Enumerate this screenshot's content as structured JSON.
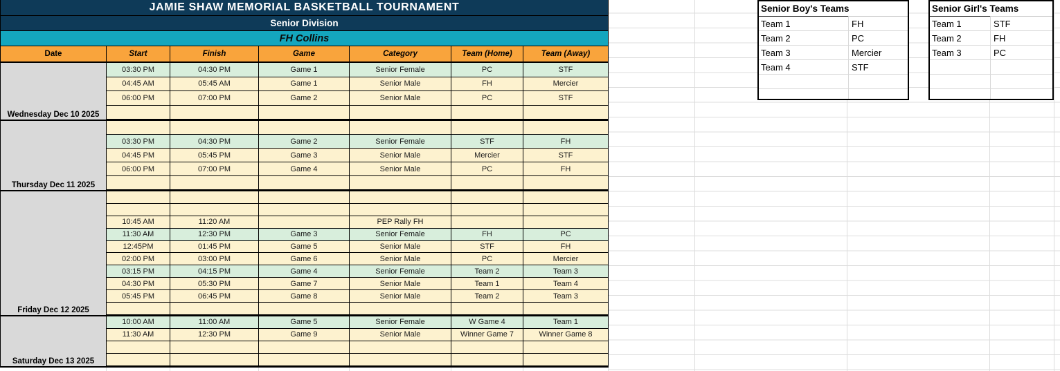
{
  "banner": {
    "title": "JAMIE SHAW MEMORIAL BASKETBALL TOURNAMENT",
    "division": "Senior Division",
    "venue": "FH Collins"
  },
  "schedule": {
    "columns": [
      "Date",
      "Start",
      "Finish",
      "Game",
      "Category",
      "Team (Home)",
      "Team (Away)"
    ],
    "groups": [
      {
        "date": "Wednesday Dec 10 2025",
        "rows": [
          {
            "start": "03:30 PM",
            "finish": "04:30 PM",
            "game": "Game 1",
            "category": "Senior Female",
            "home": "PC",
            "away": "STF",
            "tint": "green"
          },
          {
            "start": "04:45 AM",
            "finish": "05:45 AM",
            "game": "Game 1",
            "category": "Senior Male",
            "home": "FH",
            "away": "Mercier",
            "tint": "cream"
          },
          {
            "start": "06:00 PM",
            "finish": "07:00 PM",
            "game": "Game 2",
            "category": "Senior Male",
            "home": "PC",
            "away": "STF",
            "tint": "cream"
          },
          {
            "start": "",
            "finish": "",
            "game": "",
            "category": "",
            "home": "",
            "away": "",
            "tint": "cream"
          }
        ]
      },
      {
        "date": "Thursday Dec 11 2025",
        "rows": [
          {
            "start": "",
            "finish": "",
            "game": "",
            "category": "",
            "home": "",
            "away": "",
            "tint": "cream"
          },
          {
            "start": "03:30 PM",
            "finish": "04:30 PM",
            "game": "Game 2",
            "category": "Senior Female",
            "home": "STF",
            "away": "FH",
            "tint": "green"
          },
          {
            "start": "04:45 PM",
            "finish": "05:45 PM",
            "game": "Game 3",
            "category": "Senior Male",
            "home": "Mercier",
            "away": "STF",
            "tint": "cream"
          },
          {
            "start": "06:00 PM",
            "finish": "07:00 PM",
            "game": "Game 4",
            "category": "Senior Male",
            "home": "PC",
            "away": "FH",
            "tint": "cream"
          },
          {
            "start": "",
            "finish": "",
            "game": "",
            "category": "",
            "home": "",
            "away": "",
            "tint": "cream"
          }
        ]
      },
      {
        "date": "Friday Dec 12 2025",
        "rows": [
          {
            "start": "",
            "finish": "",
            "game": "",
            "category": "",
            "home": "",
            "away": "",
            "tint": "cream"
          },
          {
            "start": "",
            "finish": "",
            "game": "",
            "category": "",
            "home": "",
            "away": "",
            "tint": "cream"
          },
          {
            "start": "10:45 AM",
            "finish": "11:20 AM",
            "game": "",
            "category": "PEP Rally FH",
            "home": "",
            "away": "",
            "tint": "cream"
          },
          {
            "start": "11:30 AM",
            "finish": "12:30 PM",
            "game": "Game 3",
            "category": "Senior Female",
            "home": "FH",
            "away": "PC",
            "tint": "green"
          },
          {
            "start": "12:45PM",
            "finish": "01:45 PM",
            "game": "Game 5",
            "category": "Senior Male",
            "home": "STF",
            "away": "FH",
            "tint": "cream"
          },
          {
            "start": "02:00 PM",
            "finish": "03:00 PM",
            "game": "Game 6",
            "category": "Senior Male",
            "home": "PC",
            "away": "Mercier",
            "tint": "cream"
          },
          {
            "start": "03:15 PM",
            "finish": "04:15 PM",
            "game": "Game 4",
            "category": "Senior Female",
            "home": "Team 2",
            "away": "Team 3",
            "tint": "green"
          },
          {
            "start": "04:30 PM",
            "finish": "05:30 PM",
            "game": "Game 7",
            "category": "Senior Male",
            "home": "Team 1",
            "away": "Team 4",
            "tint": "cream"
          },
          {
            "start": "05:45 PM",
            "finish": "06:45 PM",
            "game": "Game 8",
            "category": "Senior Male",
            "home": "Team 2",
            "away": "Team 3",
            "tint": "cream"
          },
          {
            "start": "",
            "finish": "",
            "game": "",
            "category": "",
            "home": "",
            "away": "",
            "tint": "cream"
          }
        ]
      },
      {
        "date": "Saturday Dec 13 2025",
        "rows": [
          {
            "start": "10:00 AM",
            "finish": "11:00 AM",
            "game": "Game 5",
            "category": "Senior Female",
            "home": "W Game 4",
            "away": "Team 1",
            "tint": "green"
          },
          {
            "start": "11:30 AM",
            "finish": "12:30 PM",
            "game": "Game 9",
            "category": "Senior Male",
            "home": "Winner Game 7",
            "away": "Winner Game 8",
            "tint": "cream"
          },
          {
            "start": "",
            "finish": "",
            "game": "",
            "category": "",
            "home": "",
            "away": "",
            "tint": "cream"
          },
          {
            "start": "",
            "finish": "",
            "game": "",
            "category": "",
            "home": "",
            "away": "",
            "tint": "cream"
          }
        ]
      }
    ]
  },
  "panels": {
    "boys": {
      "title": "Senior Boy's Teams",
      "teams": [
        {
          "label": "Team 1",
          "value": "FH"
        },
        {
          "label": "Team 2",
          "value": "PC"
        },
        {
          "label": "Team 3",
          "value": "Mercier"
        },
        {
          "label": "Team 4",
          "value": "STF"
        }
      ]
    },
    "girls": {
      "title": "Senior Girl's Teams",
      "teams": [
        {
          "label": "Team 1",
          "value": "STF"
        },
        {
          "label": "Team 2",
          "value": "FH"
        },
        {
          "label": "Team 3",
          "value": "PC"
        }
      ]
    }
  },
  "colors": {
    "navy": "#0E3A58",
    "cyan": "#14A6BE",
    "orange": "#F9A43C",
    "row_green": "#D8EEDC",
    "row_cream": "#FDF2CF",
    "date_gray": "#D9D9D9",
    "grid_line": "#DCDCDC"
  }
}
